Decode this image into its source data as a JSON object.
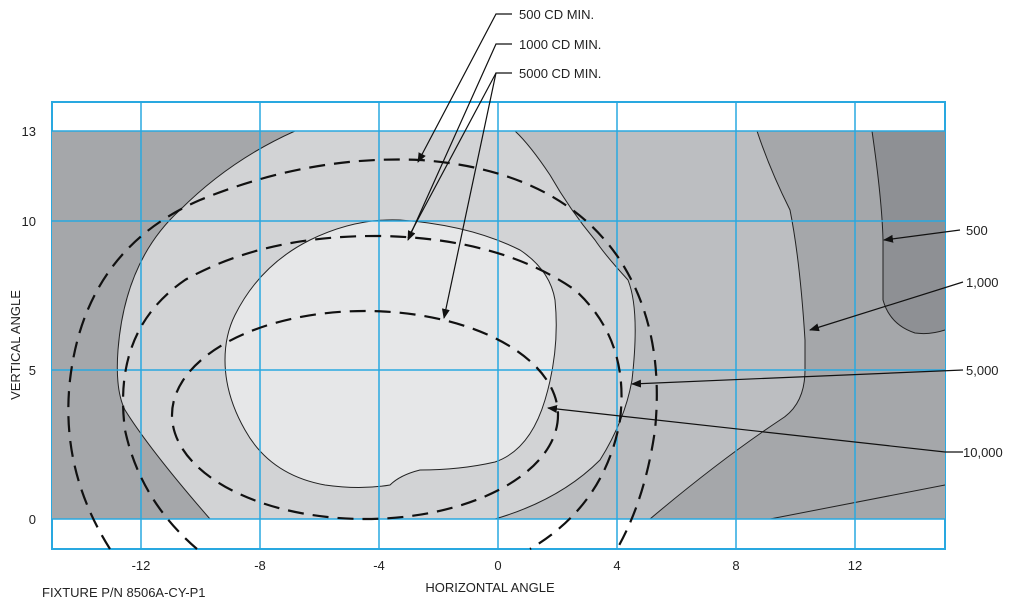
{
  "diagram": {
    "x_axis_label": "HORIZONTAL ANGLE",
    "y_axis_label": "VERTICAL ANGLE",
    "x_ticks": [
      "-12",
      "-8",
      "-4",
      "0",
      "4",
      "8",
      "12"
    ],
    "y_ticks": [
      "0",
      "5",
      "10",
      "13"
    ],
    "fixture_label": "FIXTURE P/N 8506A-CY-P1",
    "minimum_labels": [
      "500 CD MIN.",
      "1000 CD MIN.",
      "5000 CD MIN."
    ],
    "contour_labels": [
      "500",
      "1,000",
      "5,000",
      "10,000"
    ],
    "colors": {
      "grid": "#29a8e0",
      "frame": "#29a8e0",
      "zone_500": "#8e9094",
      "zone_1000": "#a5a7aa",
      "zone_5000": "#bcbec1",
      "zone_10000": "#d2d3d5",
      "zone_core": "#e6e7e8"
    }
  }
}
